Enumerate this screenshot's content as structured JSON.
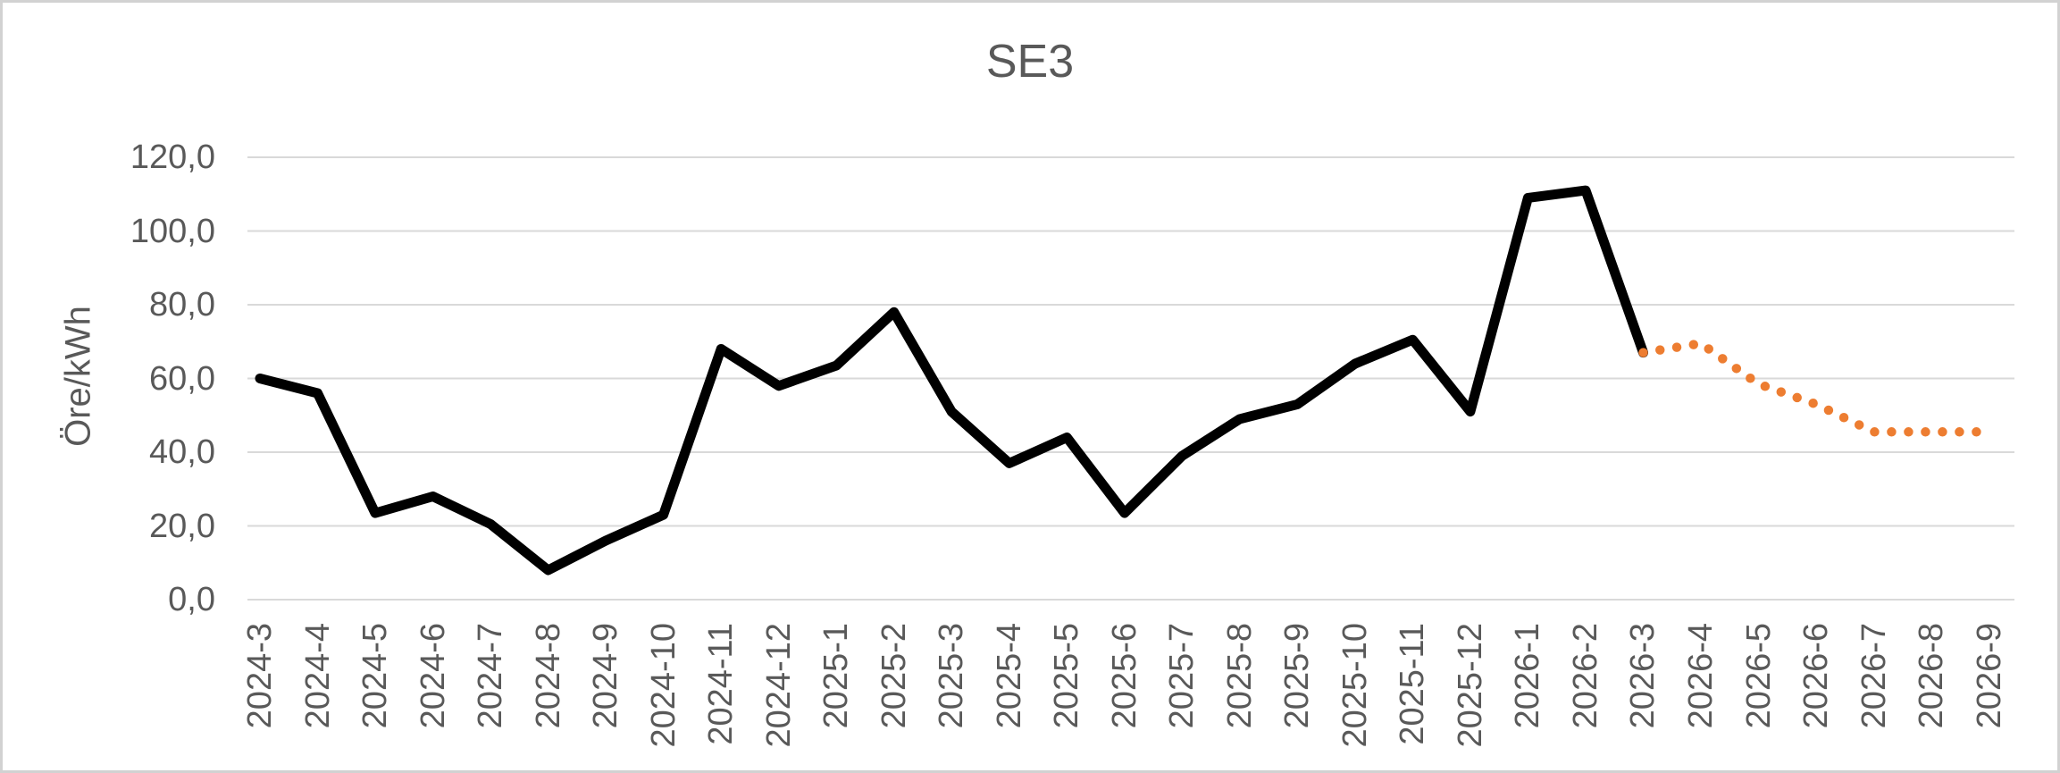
{
  "chart": {
    "title": "SE3",
    "y_axis_title": "Öre/kWh"
  },
  "chart_data": {
    "type": "line",
    "title": "SE3",
    "xlabel": "",
    "ylabel": "Öre/kWh",
    "ylim": [
      0,
      120
    ],
    "grid": true,
    "legend": "none",
    "colors": {
      "solid_series": "#000000",
      "dotted_series": "#ED7D31",
      "gridline": "#D9D9D9",
      "axis_text": "#595959",
      "frame_border": "#D2D2D2"
    },
    "y_ticks": [
      {
        "label": "0,0",
        "value": 0
      },
      {
        "label": "20,0",
        "value": 20
      },
      {
        "label": "40,0",
        "value": 40
      },
      {
        "label": "60,0",
        "value": 60
      },
      {
        "label": "80,0",
        "value": 80
      },
      {
        "label": "100,0",
        "value": 100
      },
      {
        "label": "120,0",
        "value": 120
      }
    ],
    "categories": [
      "2024-3",
      "2024-4",
      "2024-5",
      "2024-6",
      "2024-7",
      "2024-8",
      "2024-9",
      "2024-10",
      "2024-11",
      "2024-12",
      "2025-1",
      "2025-2",
      "2025-3",
      "2025-4",
      "2025-5",
      "2025-6",
      "2025-7",
      "2025-8",
      "2025-9",
      "2025-10",
      "2025-11",
      "2025-12",
      "2026-1",
      "2026-2",
      "2026-3",
      "2026-4",
      "2026-5",
      "2026-6",
      "2026-7",
      "2026-8",
      "2026-9"
    ],
    "series": [
      {
        "name": "solid-black-series",
        "style": "solid",
        "color": "#000000",
        "values": [
          60,
          56,
          23.5,
          28,
          20.5,
          8,
          16,
          23,
          68,
          58,
          63.5,
          78,
          51,
          37,
          44,
          23.5,
          39,
          49,
          53,
          64,
          70.5,
          51,
          109,
          111,
          67,
          null,
          null,
          null,
          null,
          null,
          null
        ]
      },
      {
        "name": "dotted-orange-series",
        "style": "dotted",
        "color": "#ED7D31",
        "values": [
          null,
          null,
          null,
          null,
          null,
          null,
          null,
          null,
          null,
          null,
          null,
          null,
          null,
          null,
          null,
          null,
          null,
          null,
          null,
          null,
          null,
          null,
          null,
          null,
          67,
          69.5,
          58.5,
          53,
          45.5,
          45.5,
          45.5
        ]
      }
    ]
  }
}
